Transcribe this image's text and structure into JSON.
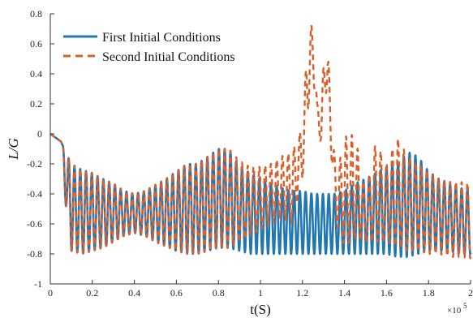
{
  "chart_data": {
    "type": "line",
    "title": "",
    "xlabel": "t(S)",
    "ylabel": "L/G",
    "x_multiplier_label": "×10",
    "x_multiplier_exp": "5",
    "xlim": [
      0,
      2
    ],
    "ylim": [
      -1,
      0.8
    ],
    "x_ticks": [
      0,
      0.2,
      0.4,
      0.6,
      0.8,
      1,
      1.2,
      1.4,
      1.6,
      1.8,
      2
    ],
    "x_tick_labels": [
      "0",
      "0.2",
      "0.4",
      "0.6",
      "0.8",
      "1",
      "1.2",
      "1.4",
      "1.6",
      "1.8",
      "2"
    ],
    "y_ticks": [
      -1,
      -0.8,
      -0.6,
      -0.4,
      -0.2,
      0,
      0.2,
      0.4,
      0.6,
      0.8
    ],
    "y_tick_labels": [
      "-1",
      "-0.8",
      "-0.6",
      "-0.4",
      "-0.2",
      "0",
      "0.2",
      "0.4",
      "0.6",
      "0.8"
    ],
    "grid": false,
    "legend_position": "top-left",
    "series": [
      {
        "name": "First Initial Conditions",
        "color": "#1f77b4",
        "style": "solid",
        "x": [
          0,
          0.05,
          0.1,
          0.15,
          0.2,
          0.25,
          0.3,
          0.35,
          0.4,
          0.45,
          0.5,
          0.55,
          0.6,
          0.65,
          0.7,
          0.75,
          0.8,
          0.85,
          0.9,
          0.95,
          1.0,
          1.05,
          1.1,
          1.15,
          1.2,
          1.25,
          1.3,
          1.35,
          1.4,
          1.45,
          1.5,
          1.55,
          1.6,
          1.65,
          1.7,
          1.75,
          1.8,
          1.85,
          1.9,
          1.95,
          2.0
        ],
        "envelope_max": [
          0,
          -0.05,
          -0.2,
          -0.24,
          -0.26,
          -0.3,
          -0.33,
          -0.38,
          -0.4,
          -0.38,
          -0.34,
          -0.3,
          -0.25,
          -0.2,
          -0.2,
          -0.15,
          -0.1,
          -0.1,
          -0.22,
          -0.26,
          -0.3,
          -0.33,
          -0.36,
          -0.38,
          -0.38,
          -0.4,
          -0.4,
          -0.4,
          -0.38,
          -0.33,
          -0.3,
          -0.26,
          -0.22,
          -0.2,
          -0.12,
          -0.15,
          -0.25,
          -0.3,
          -0.33,
          -0.36,
          -0.38
        ],
        "envelope_min": [
          0,
          -0.2,
          -0.78,
          -0.8,
          -0.78,
          -0.76,
          -0.72,
          -0.68,
          -0.66,
          -0.68,
          -0.72,
          -0.75,
          -0.78,
          -0.8,
          -0.8,
          -0.78,
          -0.76,
          -0.76,
          -0.78,
          -0.8,
          -0.8,
          -0.8,
          -0.8,
          -0.8,
          -0.8,
          -0.8,
          -0.8,
          -0.8,
          -0.8,
          -0.8,
          -0.8,
          -0.8,
          -0.8,
          -0.82,
          -0.82,
          -0.8,
          -0.78,
          -0.78,
          -0.78,
          -0.8,
          -0.8
        ],
        "period": 0.0275
      },
      {
        "name": "Second Initial Conditions",
        "color": "#d9602b",
        "style": "dashed",
        "x": [
          0,
          0.05,
          0.1,
          0.15,
          0.2,
          0.25,
          0.3,
          0.35,
          0.4,
          0.45,
          0.5,
          0.55,
          0.6,
          0.65,
          0.7,
          0.75,
          0.8,
          0.85,
          0.9,
          0.95,
          1.0,
          1.05,
          1.1,
          1.15,
          1.2,
          1.23,
          1.25,
          1.27,
          1.29,
          1.31,
          1.33,
          1.36,
          1.4,
          1.45,
          1.5,
          1.55,
          1.6,
          1.65,
          1.7,
          1.75,
          1.8,
          1.85,
          1.9,
          1.95,
          2.0
        ],
        "envelope_max": [
          0,
          -0.05,
          -0.2,
          -0.24,
          -0.26,
          -0.3,
          -0.33,
          -0.38,
          -0.4,
          -0.38,
          -0.34,
          -0.3,
          -0.25,
          -0.2,
          -0.2,
          -0.15,
          -0.1,
          -0.1,
          -0.18,
          -0.22,
          -0.22,
          -0.2,
          -0.15,
          -0.12,
          0.05,
          0.75,
          0.7,
          0.2,
          0.15,
          0.78,
          0.35,
          -0.3,
          -0.02,
          0.0,
          -0.4,
          -0.05,
          -0.2,
          -0.02,
          -0.15,
          -0.2,
          -0.25,
          -0.3,
          -0.32,
          -0.32,
          -0.33
        ],
        "envelope_min": [
          0,
          -0.2,
          -0.78,
          -0.8,
          -0.78,
          -0.76,
          -0.72,
          -0.68,
          -0.66,
          -0.68,
          -0.72,
          -0.75,
          -0.78,
          -0.8,
          -0.8,
          -0.78,
          -0.76,
          -0.76,
          -0.72,
          -0.68,
          -0.64,
          -0.6,
          -0.56,
          -0.6,
          -0.3,
          0.2,
          0.4,
          0.1,
          -0.1,
          0.3,
          0.0,
          -0.6,
          -0.75,
          -0.7,
          -0.72,
          -0.72,
          -0.72,
          -0.75,
          -0.78,
          -0.78,
          -0.8,
          -0.8,
          -0.82,
          -0.82,
          -0.83
        ],
        "period": 0.0275
      }
    ]
  }
}
